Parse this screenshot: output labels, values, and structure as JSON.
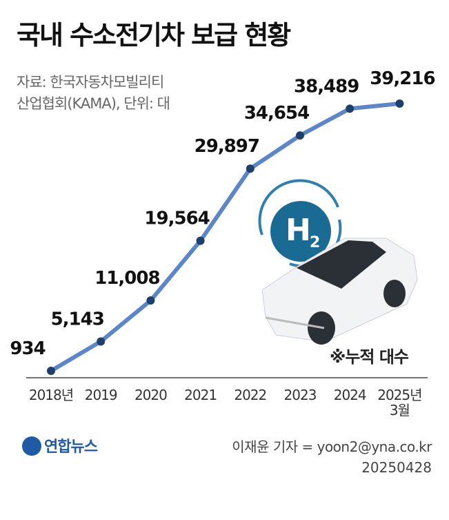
{
  "chart_data": {
    "type": "line",
    "title": "국내 수소전기차 보급 현황",
    "source": [
      "자료: 한국자동차모빌리티",
      "산업협회(KAMA), 단위: 대"
    ],
    "categories": [
      "2018년",
      "2019",
      "2020",
      "2021",
      "2022",
      "2023",
      "2024",
      "2025년\n3월"
    ],
    "values": [
      934,
      5143,
      11008,
      19564,
      29897,
      34654,
      38489,
      39216
    ],
    "value_labels": [
      "934",
      "5,143",
      "11,008",
      "19,564",
      "29,897",
      "34,654",
      "38,489",
      "39,216"
    ],
    "color": "#5b86c8",
    "marker_color": "#1d3f6e",
    "note": "※누적 대수",
    "badge": {
      "main": "H",
      "sub": "2"
    }
  },
  "footer": {
    "logo": "연합뉴스",
    "credit": "이재윤 기자 = yoon2@yna.co.kr",
    "date": "20250428"
  }
}
